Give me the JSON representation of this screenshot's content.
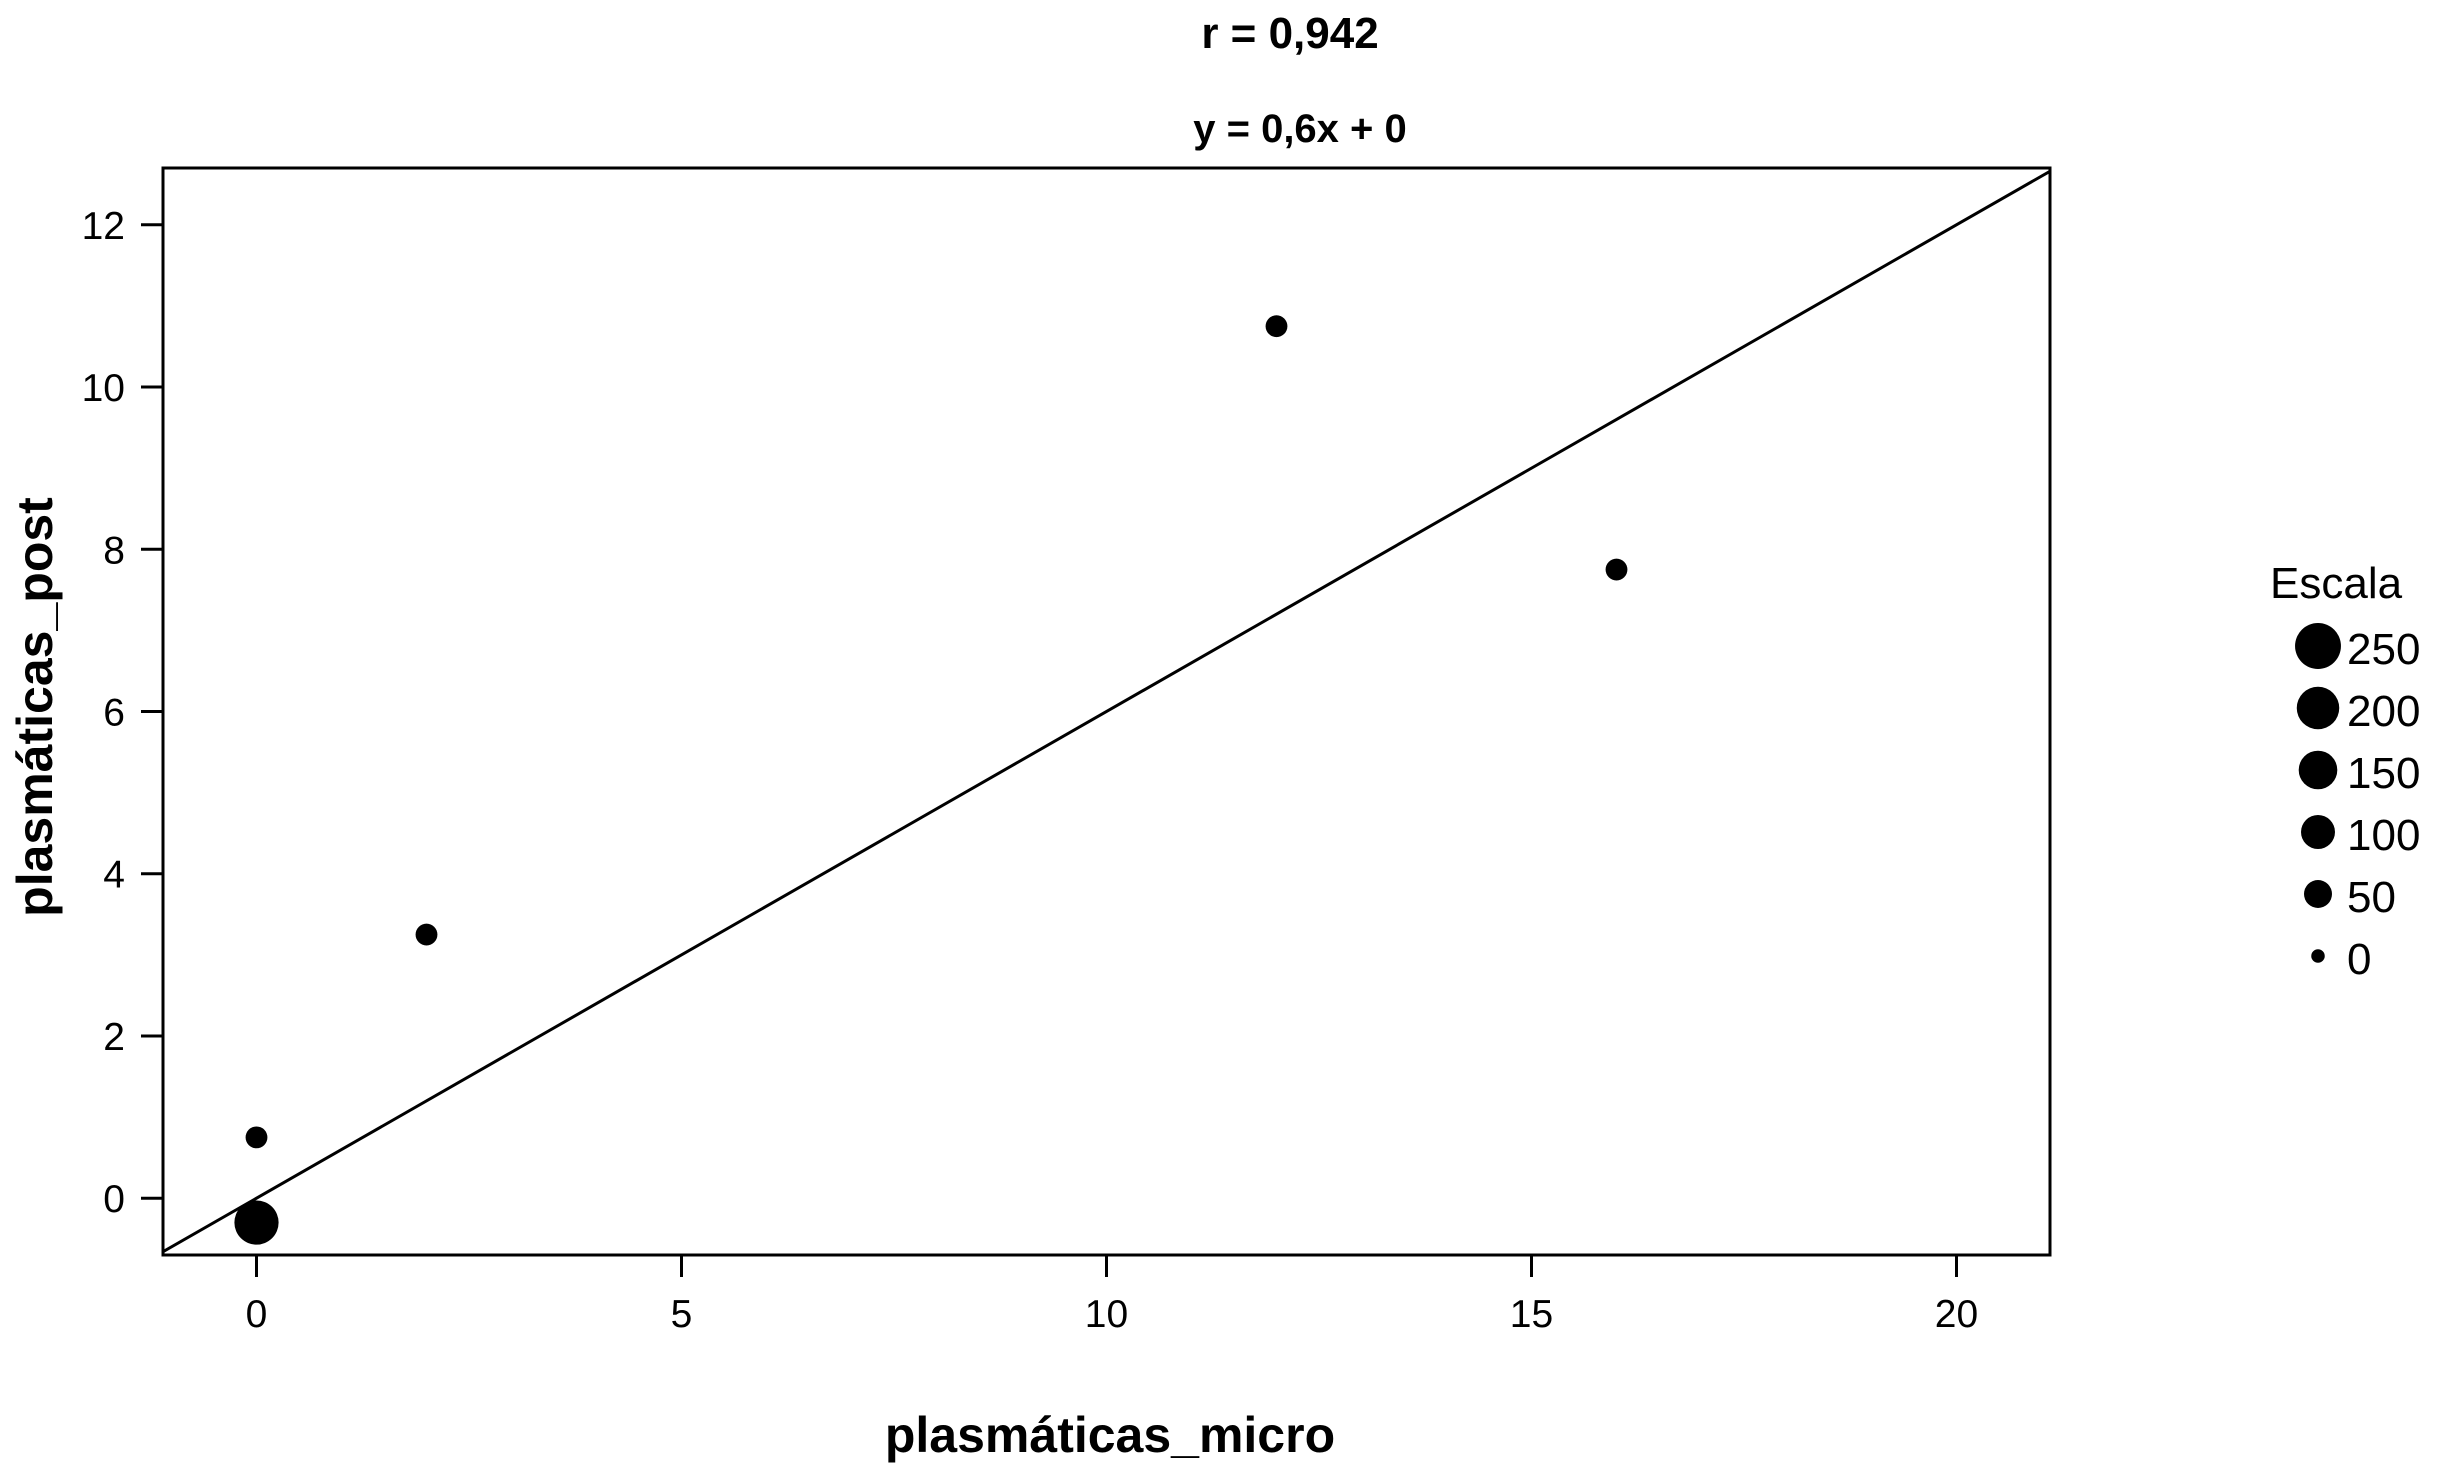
{
  "chart_data": {
    "type": "scatter",
    "title": "r = 0,942",
    "subtitle": "y = 0,6x + 0",
    "xlabel": "plasmáticas_micro",
    "ylabel": "plasmáticas_post",
    "xlim": [
      -1.1,
      21.1
    ],
    "ylim": [
      -0.7,
      12.7
    ],
    "x_ticks": [
      0,
      5,
      10,
      15,
      20
    ],
    "y_ticks": [
      0,
      2,
      4,
      6,
      8,
      10,
      12
    ],
    "grid": false,
    "points": [
      {
        "x": 0,
        "y": -0.3,
        "size": 250
      },
      {
        "x": 0,
        "y": 0.75,
        "size": 20
      },
      {
        "x": 2,
        "y": 3.25,
        "size": 20
      },
      {
        "x": 12,
        "y": 10.75,
        "size": 20
      },
      {
        "x": 16,
        "y": 7.75,
        "size": 20
      }
    ],
    "fit_line": {
      "slope": 0.6,
      "intercept": 0
    },
    "legend": {
      "title": "Escala",
      "placement": "right",
      "entries": [
        {
          "label": "250",
          "size": 250
        },
        {
          "label": "200",
          "size": 200
        },
        {
          "label": "150",
          "size": 150
        },
        {
          "label": "100",
          "size": 100
        },
        {
          "label": "50",
          "size": 50
        },
        {
          "label": "0",
          "size": 0
        }
      ]
    },
    "point_color": "#000000"
  }
}
